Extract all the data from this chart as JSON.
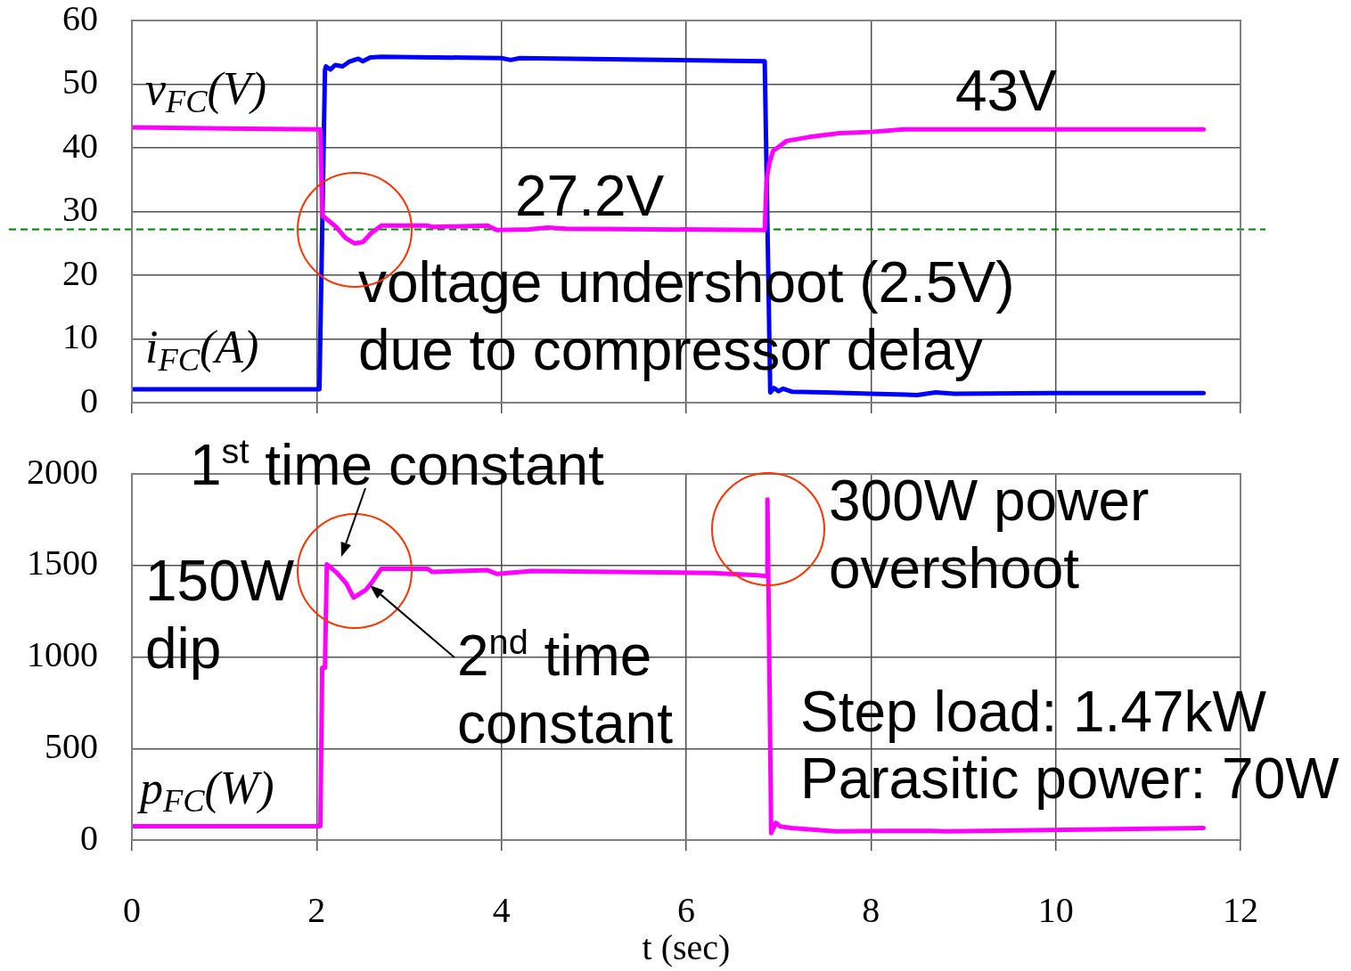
{
  "chart_data": [
    {
      "type": "line",
      "xlim": [
        0,
        12
      ],
      "xticks": [
        0,
        2,
        4,
        6,
        8,
        10,
        12
      ],
      "ylim": [
        0,
        60
      ],
      "yticks": [
        0,
        10,
        20,
        30,
        40,
        50,
        60
      ],
      "grid": true,
      "legend": false,
      "marker": "none",
      "tick_labels": "y",
      "series": [
        {
          "name": "v$_{FC}$(V)",
          "color": "#ff00ff",
          "x": [
            0,
            2.04,
            2.06,
            2.21,
            2.31,
            2.41,
            2.5,
            2.59,
            2.7,
            3.2,
            3.25,
            3.85,
            3.95,
            4.3,
            4.5,
            4.7,
            6.85,
            6.87,
            6.9,
            6.94,
            7.09,
            7.33,
            7.66,
            8.0,
            8.35,
            11.6
          ],
          "values": [
            43.2,
            42.9,
            29.4,
            27.6,
            25.9,
            25.0,
            25.2,
            26.6,
            27.8,
            27.8,
            27.6,
            27.8,
            27.1,
            27.2,
            27.5,
            27.3,
            27.1,
            34.9,
            37.6,
            39.5,
            41.1,
            41.7,
            42.3,
            42.5,
            42.9,
            42.9
          ]
        },
        {
          "name": "i$_{FC}$(A)",
          "color": "#0000ff",
          "x": [
            0,
            2.03,
            2.09,
            2.1,
            2.15,
            2.2,
            2.28,
            2.35,
            2.45,
            2.5,
            2.58,
            2.7,
            4.0,
            4.1,
            4.2,
            6.85,
            6.91,
            6.95,
            7.0,
            7.05,
            7.15,
            7.5,
            8.0,
            8.5,
            8.7,
            8.9,
            10.0,
            11.6
          ],
          "values": [
            2.1,
            2.1,
            52.2,
            52.8,
            52.3,
            53.0,
            52.8,
            53.5,
            54.0,
            53.6,
            54.2,
            54.3,
            54.1,
            53.8,
            54.1,
            53.6,
            1.6,
            2.3,
            1.8,
            2.2,
            1.7,
            1.6,
            1.4,
            1.2,
            1.6,
            1.4,
            1.5,
            1.5
          ]
        }
      ],
      "ref_lines": [
        {
          "axis": "y",
          "value": 27.2,
          "label": "27.2V",
          "color": "#008000",
          "line_style": "dashed"
        }
      ],
      "annotations": [
        "43V",
        "voltage undershoot (2.5V)\ndue to compressor delay"
      ]
    },
    {
      "type": "line",
      "xlim": [
        0,
        12
      ],
      "xticks": [
        0,
        2,
        4,
        6,
        8,
        10,
        12
      ],
      "ylim": [
        0,
        2000
      ],
      "yticks": [
        0,
        500,
        1000,
        1500,
        2000
      ],
      "grid": true,
      "legend": false,
      "marker": "none",
      "xlabel": "t (sec)",
      "series": [
        {
          "name": "p$_{FC}$(W)",
          "color": "#ff00ff",
          "x": [
            0,
            2.04,
            2.06,
            2.09,
            2.11,
            2.22,
            2.32,
            2.4,
            2.53,
            2.59,
            2.7,
            3.2,
            3.25,
            3.85,
            3.95,
            4.33,
            6.29,
            6.77,
            6.88,
            6.88,
            6.92,
            6.97,
            7.02,
            7.14,
            7.62,
            8.14,
            8.66,
            8.81,
            11.6
          ],
          "values": [
            75,
            75,
            941,
            941,
            1506,
            1459,
            1402,
            1324,
            1365,
            1402,
            1482,
            1482,
            1465,
            1474,
            1454,
            1470,
            1459,
            1446,
            1441,
            1860,
            38,
            94,
            74,
            66,
            47,
            50,
            50,
            47,
            66
          ]
        }
      ],
      "annotations": [
        "1$^{st}$ time constant",
        "150W\ndip",
        "2$^{nd}$ time\nconstant",
        "300W power\novershoot",
        "Step load: 1.47kW",
        "Parasitic power: 70W"
      ]
    }
  ]
}
